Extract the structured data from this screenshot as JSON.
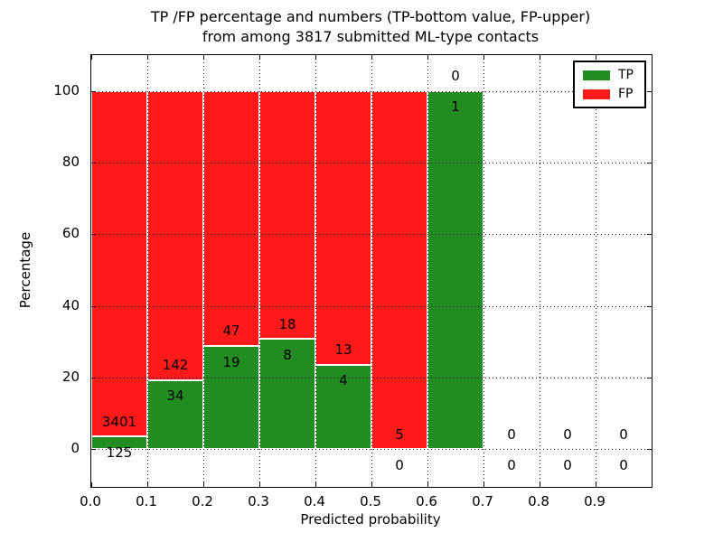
{
  "figure": {
    "background": "#ffffff",
    "text_color": "#000000"
  },
  "chart_data": {
    "type": "bar",
    "stacked": true,
    "title_line1": "TP /FP percentage and numbers (TP-bottom value, FP-upper)",
    "title_line2": "from among 3817 submitted ML-type contacts",
    "xlabel": "Predicted probability",
    "ylabel": "Percentage",
    "xlim": [
      0.0,
      1.0
    ],
    "ylim": [
      -10.5,
      110
    ],
    "grid": true,
    "legend_position": "upper right",
    "total_submitted": 3817,
    "xticks": {
      "values": [
        0.0,
        0.1,
        0.2,
        0.3,
        0.4,
        0.5,
        0.6,
        0.7,
        0.8,
        0.9
      ],
      "labels": [
        "0.0",
        "0.1",
        "0.2",
        "0.3",
        "0.4",
        "0.5",
        "0.6",
        "0.7",
        "0.8",
        "0.9"
      ]
    },
    "yticks": {
      "values": [
        0,
        20,
        40,
        60,
        80,
        100
      ],
      "labels": [
        "0",
        "20",
        "40",
        "60",
        "80",
        "100"
      ]
    },
    "series": [
      {
        "name": "TP",
        "color": "#228b22",
        "position": "bottom"
      },
      {
        "name": "FP",
        "color": "#ff1a1a",
        "position": "top"
      }
    ],
    "bin_width": 0.1,
    "bins": [
      {
        "range": [
          0.0,
          0.1
        ],
        "tp": 125,
        "fp": 3401
      },
      {
        "range": [
          0.1,
          0.2
        ],
        "tp": 34,
        "fp": 142
      },
      {
        "range": [
          0.2,
          0.3
        ],
        "tp": 19,
        "fp": 47
      },
      {
        "range": [
          0.3,
          0.4
        ],
        "tp": 8,
        "fp": 18
      },
      {
        "range": [
          0.4,
          0.5
        ],
        "tp": 4,
        "fp": 13
      },
      {
        "range": [
          0.5,
          0.6
        ],
        "tp": 0,
        "fp": 5
      },
      {
        "range": [
          0.6,
          0.7
        ],
        "tp": 1,
        "fp": 0
      },
      {
        "range": [
          0.7,
          0.8
        ],
        "tp": 0,
        "fp": 0
      },
      {
        "range": [
          0.8,
          0.9
        ],
        "tp": 0,
        "fp": 0
      },
      {
        "range": [
          0.9,
          1.0
        ],
        "tp": 0,
        "fp": 0
      }
    ]
  }
}
